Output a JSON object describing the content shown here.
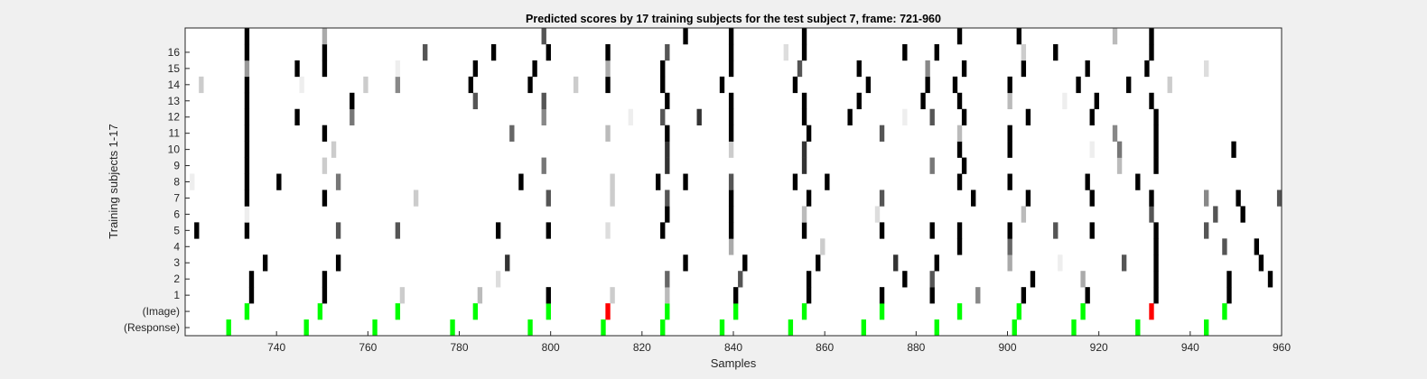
{
  "chart_data": {
    "type": "heatmap",
    "title": "Predicted scores by 17 training subjects for the test subject 7, frame: 721-960",
    "xlabel": "Samples",
    "ylabel": "Training subjects 1-17",
    "xlim": [
      721,
      960
    ],
    "xticks": [
      740,
      760,
      780,
      800,
      820,
      840,
      860,
      880,
      900,
      920,
      940,
      960
    ],
    "rows": [
      {
        "label": "(Response)",
        "cells": [
          [
            730,
            "#00ff00"
          ],
          [
            747,
            "#00ff00"
          ],
          [
            762,
            "#00ff00"
          ],
          [
            779,
            "#00ff00"
          ],
          [
            796,
            "#00ff00"
          ],
          [
            812,
            "#00ff00"
          ],
          [
            825,
            "#00ff00"
          ],
          [
            838,
            "#00ff00"
          ],
          [
            853,
            "#00ff00"
          ],
          [
            869,
            "#00ff00"
          ],
          [
            885,
            "#00ff00"
          ],
          [
            902,
            "#00ff00"
          ],
          [
            915,
            "#00ff00"
          ],
          [
            929,
            "#00ff00"
          ],
          [
            944,
            "#00ff00"
          ]
        ]
      },
      {
        "label": "(Image)",
        "cells": [
          [
            734,
            "#00ff00"
          ],
          [
            750,
            "#00ff00"
          ],
          [
            767,
            "#00ff00"
          ],
          [
            784,
            "#00ff00"
          ],
          [
            800,
            "#00ff00"
          ],
          [
            813,
            "#ff0000"
          ],
          [
            826,
            "#00ff00"
          ],
          [
            841,
            "#00ff00"
          ],
          [
            856,
            "#00ff00"
          ],
          [
            873,
            "#00ff00"
          ],
          [
            890,
            "#00ff00"
          ],
          [
            903,
            "#00ff00"
          ],
          [
            917,
            "#00ff00"
          ],
          [
            932,
            "#ff0000"
          ],
          [
            948,
            "#00ff00"
          ]
        ]
      },
      {
        "label": "1",
        "cells": [
          [
            735,
            "#000000"
          ],
          [
            751,
            "#000000"
          ],
          [
            768,
            "#cccccc"
          ],
          [
            785,
            "#bbbbbb"
          ],
          [
            800,
            "#000000"
          ],
          [
            814,
            "#cccccc"
          ],
          [
            826,
            "#bbbbbb"
          ],
          [
            841,
            "#000000"
          ],
          [
            857,
            "#000000"
          ],
          [
            873,
            "#000000"
          ],
          [
            884,
            "#000000"
          ],
          [
            894,
            "#888888"
          ],
          [
            904,
            "#000000"
          ],
          [
            918,
            "#000000"
          ],
          [
            933,
            "#000000"
          ],
          [
            949,
            "#000000"
          ]
        ]
      },
      {
        "label": "2",
        "cells": [
          [
            735,
            "#000000"
          ],
          [
            751,
            "#000000"
          ],
          [
            789,
            "#dddddd"
          ],
          [
            826,
            "#666666"
          ],
          [
            842,
            "#555555"
          ],
          [
            857,
            "#000000"
          ],
          [
            878,
            "#000000"
          ],
          [
            884,
            "#555555"
          ],
          [
            906,
            "#000000"
          ],
          [
            917,
            "#aaaaaa"
          ],
          [
            933,
            "#000000"
          ],
          [
            949,
            "#000000"
          ],
          [
            958,
            "#000000"
          ]
        ]
      },
      {
        "label": "3",
        "cells": [
          [
            738,
            "#000000"
          ],
          [
            754,
            "#000000"
          ],
          [
            791,
            "#333333"
          ],
          [
            830,
            "#000000"
          ],
          [
            843,
            "#000000"
          ],
          [
            859,
            "#000000"
          ],
          [
            876,
            "#333333"
          ],
          [
            885,
            "#000000"
          ],
          [
            901,
            "#aaaaaa"
          ],
          [
            912,
            "#eeeeee"
          ],
          [
            926,
            "#555555"
          ],
          [
            933,
            "#000000"
          ],
          [
            956,
            "#000000"
          ]
        ]
      },
      {
        "label": "4",
        "cells": [
          [
            840,
            "#aaaaaa"
          ],
          [
            860,
            "#cccccc"
          ],
          [
            890,
            "#000000"
          ],
          [
            901,
            "#666666"
          ],
          [
            933,
            "#000000"
          ],
          [
            948,
            "#555555"
          ],
          [
            955,
            "#000000"
          ]
        ]
      },
      {
        "label": "5",
        "cells": [
          [
            723,
            "#000000"
          ],
          [
            734,
            "#000000"
          ],
          [
            754,
            "#555555"
          ],
          [
            767,
            "#555555"
          ],
          [
            789,
            "#000000"
          ],
          [
            800,
            "#000000"
          ],
          [
            813,
            "#dddddd"
          ],
          [
            825,
            "#000000"
          ],
          [
            840,
            "#000000"
          ],
          [
            856,
            "#000000"
          ],
          [
            873,
            "#000000"
          ],
          [
            884,
            "#000000"
          ],
          [
            890,
            "#000000"
          ],
          [
            901,
            "#000000"
          ],
          [
            911,
            "#555555"
          ],
          [
            919,
            "#000000"
          ],
          [
            933,
            "#000000"
          ],
          [
            944,
            "#555555"
          ]
        ]
      },
      {
        "label": "6",
        "cells": [
          [
            734,
            "#eeeeee"
          ],
          [
            826,
            "#000000"
          ],
          [
            840,
            "#000000"
          ],
          [
            856,
            "#bbbbbb"
          ],
          [
            872,
            "#dddddd"
          ],
          [
            904,
            "#bbbbbb"
          ],
          [
            932,
            "#555555"
          ],
          [
            946,
            "#555555"
          ],
          [
            952,
            "#000000"
          ]
        ]
      },
      {
        "label": "7",
        "cells": [
          [
            734,
            "#000000"
          ],
          [
            751,
            "#000000"
          ],
          [
            771,
            "#cccccc"
          ],
          [
            800,
            "#555555"
          ],
          [
            814,
            "#cccccc"
          ],
          [
            826,
            "#555555"
          ],
          [
            840,
            "#000000"
          ],
          [
            857,
            "#000000"
          ],
          [
            873,
            "#555555"
          ],
          [
            893,
            "#000000"
          ],
          [
            905,
            "#000000"
          ],
          [
            919,
            "#000000"
          ],
          [
            932,
            "#000000"
          ],
          [
            944,
            "#888888"
          ],
          [
            951,
            "#000000"
          ],
          [
            960,
            "#555555"
          ]
        ]
      },
      {
        "label": "8",
        "cells": [
          [
            722,
            "#eeeeee"
          ],
          [
            734,
            "#000000"
          ],
          [
            741,
            "#000000"
          ],
          [
            754,
            "#777777"
          ],
          [
            794,
            "#000000"
          ],
          [
            814,
            "#cccccc"
          ],
          [
            824,
            "#000000"
          ],
          [
            830,
            "#000000"
          ],
          [
            840,
            "#555555"
          ],
          [
            854,
            "#000000"
          ],
          [
            861,
            "#000000"
          ],
          [
            890,
            "#000000"
          ],
          [
            901,
            "#000000"
          ],
          [
            918,
            "#000000"
          ],
          [
            929,
            "#000000"
          ]
        ]
      },
      {
        "label": "9",
        "cells": [
          [
            734,
            "#000000"
          ],
          [
            751,
            "#cccccc"
          ],
          [
            799,
            "#777777"
          ],
          [
            826,
            "#333333"
          ],
          [
            856,
            "#333333"
          ],
          [
            884,
            "#777777"
          ],
          [
            891,
            "#000000"
          ],
          [
            925,
            "#bbbbbb"
          ],
          [
            933,
            "#000000"
          ]
        ]
      },
      {
        "label": "10",
        "cells": [
          [
            734,
            "#000000"
          ],
          [
            753,
            "#cccccc"
          ],
          [
            826,
            "#333333"
          ],
          [
            840,
            "#cccccc"
          ],
          [
            856,
            "#333333"
          ],
          [
            890,
            "#000000"
          ],
          [
            901,
            "#000000"
          ],
          [
            919,
            "#eeeeee"
          ],
          [
            925,
            "#777777"
          ],
          [
            933,
            "#000000"
          ],
          [
            950,
            "#000000"
          ]
        ]
      },
      {
        "label": "11",
        "cells": [
          [
            734,
            "#000000"
          ],
          [
            751,
            "#000000"
          ],
          [
            792,
            "#666666"
          ],
          [
            813,
            "#bbbbbb"
          ],
          [
            826,
            "#000000"
          ],
          [
            840,
            "#000000"
          ],
          [
            857,
            "#000000"
          ],
          [
            873,
            "#555555"
          ],
          [
            890,
            "#bbbbbb"
          ],
          [
            901,
            "#000000"
          ],
          [
            924,
            "#888888"
          ],
          [
            933,
            "#000000"
          ]
        ]
      },
      {
        "label": "12",
        "cells": [
          [
            734,
            "#000000"
          ],
          [
            745,
            "#000000"
          ],
          [
            757,
            "#777777"
          ],
          [
            799,
            "#888888"
          ],
          [
            818,
            "#eeeeee"
          ],
          [
            825,
            "#555555"
          ],
          [
            833,
            "#333333"
          ],
          [
            840,
            "#000000"
          ],
          [
            856,
            "#000000"
          ],
          [
            866,
            "#000000"
          ],
          [
            878,
            "#eeeeee"
          ],
          [
            884,
            "#555555"
          ],
          [
            891,
            "#000000"
          ],
          [
            905,
            "#000000"
          ],
          [
            919,
            "#000000"
          ],
          [
            933,
            "#000000"
          ]
        ]
      },
      {
        "label": "13",
        "cells": [
          [
            734,
            "#000000"
          ],
          [
            757,
            "#000000"
          ],
          [
            784,
            "#555555"
          ],
          [
            799,
            "#555555"
          ],
          [
            826,
            "#000000"
          ],
          [
            840,
            "#000000"
          ],
          [
            856,
            "#000000"
          ],
          [
            868,
            "#000000"
          ],
          [
            882,
            "#000000"
          ],
          [
            890,
            "#000000"
          ],
          [
            901,
            "#bbbbbb"
          ],
          [
            913,
            "#eeeeee"
          ],
          [
            920,
            "#000000"
          ],
          [
            932,
            "#000000"
          ]
        ]
      },
      {
        "label": "14",
        "cells": [
          [
            724,
            "#cccccc"
          ],
          [
            734,
            "#000000"
          ],
          [
            746,
            "#eeeeee"
          ],
          [
            760,
            "#cccccc"
          ],
          [
            767,
            "#888888"
          ],
          [
            783,
            "#000000"
          ],
          [
            796,
            "#000000"
          ],
          [
            806,
            "#cccccc"
          ],
          [
            813,
            "#000000"
          ],
          [
            825,
            "#000000"
          ],
          [
            838,
            "#000000"
          ],
          [
            854,
            "#000000"
          ],
          [
            870,
            "#000000"
          ],
          [
            883,
            "#000000"
          ],
          [
            889,
            "#000000"
          ],
          [
            901,
            "#000000"
          ],
          [
            916,
            "#000000"
          ],
          [
            927,
            "#000000"
          ],
          [
            936,
            "#cccccc"
          ]
        ]
      },
      {
        "label": "15",
        "cells": [
          [
            734,
            "#999999"
          ],
          [
            745,
            "#000000"
          ],
          [
            751,
            "#000000"
          ],
          [
            767,
            "#eeeeee"
          ],
          [
            784,
            "#000000"
          ],
          [
            797,
            "#000000"
          ],
          [
            813,
            "#aaaaaa"
          ],
          [
            825,
            "#000000"
          ],
          [
            840,
            "#000000"
          ],
          [
            855,
            "#555555"
          ],
          [
            868,
            "#000000"
          ],
          [
            883,
            "#888888"
          ],
          [
            891,
            "#000000"
          ],
          [
            904,
            "#000000"
          ],
          [
            918,
            "#000000"
          ],
          [
            931,
            "#000000"
          ],
          [
            944,
            "#dddddd"
          ]
        ]
      },
      {
        "label": "16",
        "cells": [
          [
            734,
            "#000000"
          ],
          [
            751,
            "#000000"
          ],
          [
            773,
            "#555555"
          ],
          [
            788,
            "#000000"
          ],
          [
            800,
            "#000000"
          ],
          [
            813,
            "#000000"
          ],
          [
            826,
            "#555555"
          ],
          [
            840,
            "#000000"
          ],
          [
            852,
            "#dddddd"
          ],
          [
            856,
            "#000000"
          ],
          [
            878,
            "#000000"
          ],
          [
            885,
            "#000000"
          ],
          [
            904,
            "#cccccc"
          ],
          [
            911,
            "#000000"
          ],
          [
            932,
            "#000000"
          ]
        ]
      },
      {
        "label": "",
        "cells": [
          [
            734,
            "#000000"
          ],
          [
            751,
            "#aaaaaa"
          ],
          [
            799,
            "#555555"
          ],
          [
            830,
            "#000000"
          ],
          [
            840,
            "#000000"
          ],
          [
            856,
            "#000000"
          ],
          [
            890,
            "#000000"
          ],
          [
            903,
            "#000000"
          ],
          [
            924,
            "#bbbbbb"
          ],
          [
            932,
            "#000000"
          ]
        ]
      }
    ]
  }
}
